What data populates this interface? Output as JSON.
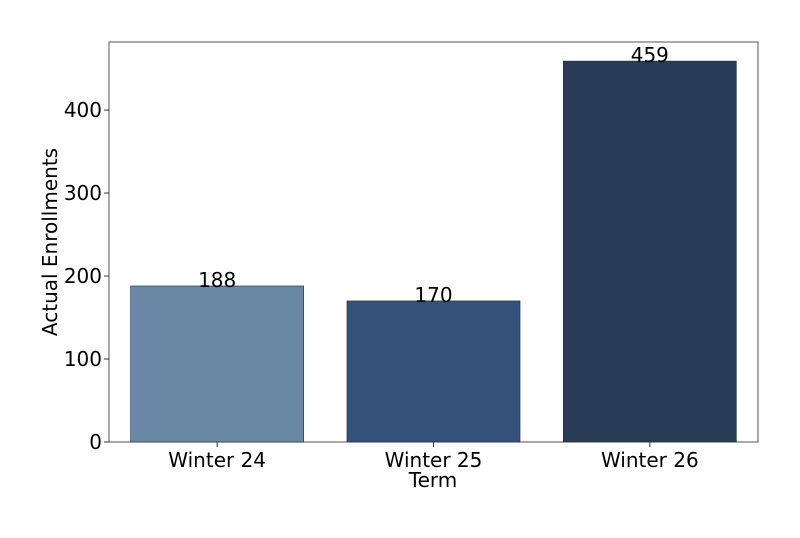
{
  "chart_data": {
    "type": "bar",
    "categories": [
      "Winter 24",
      "Winter 25",
      "Winter 26"
    ],
    "values": [
      188,
      170,
      459
    ],
    "data_labels": [
      "188",
      "170",
      "459"
    ],
    "xlabel": "Term",
    "ylabel": "Actual Enrollments",
    "ylim": [
      0,
      482
    ],
    "yticks": [
      0,
      100,
      200,
      300,
      400
    ],
    "ytick_labels": [
      "0",
      "100",
      "200",
      "300",
      "400"
    ],
    "grid": false,
    "legend": "none",
    "colors": [
      "#6888a5",
      "#34517a",
      "#283c57"
    ]
  }
}
